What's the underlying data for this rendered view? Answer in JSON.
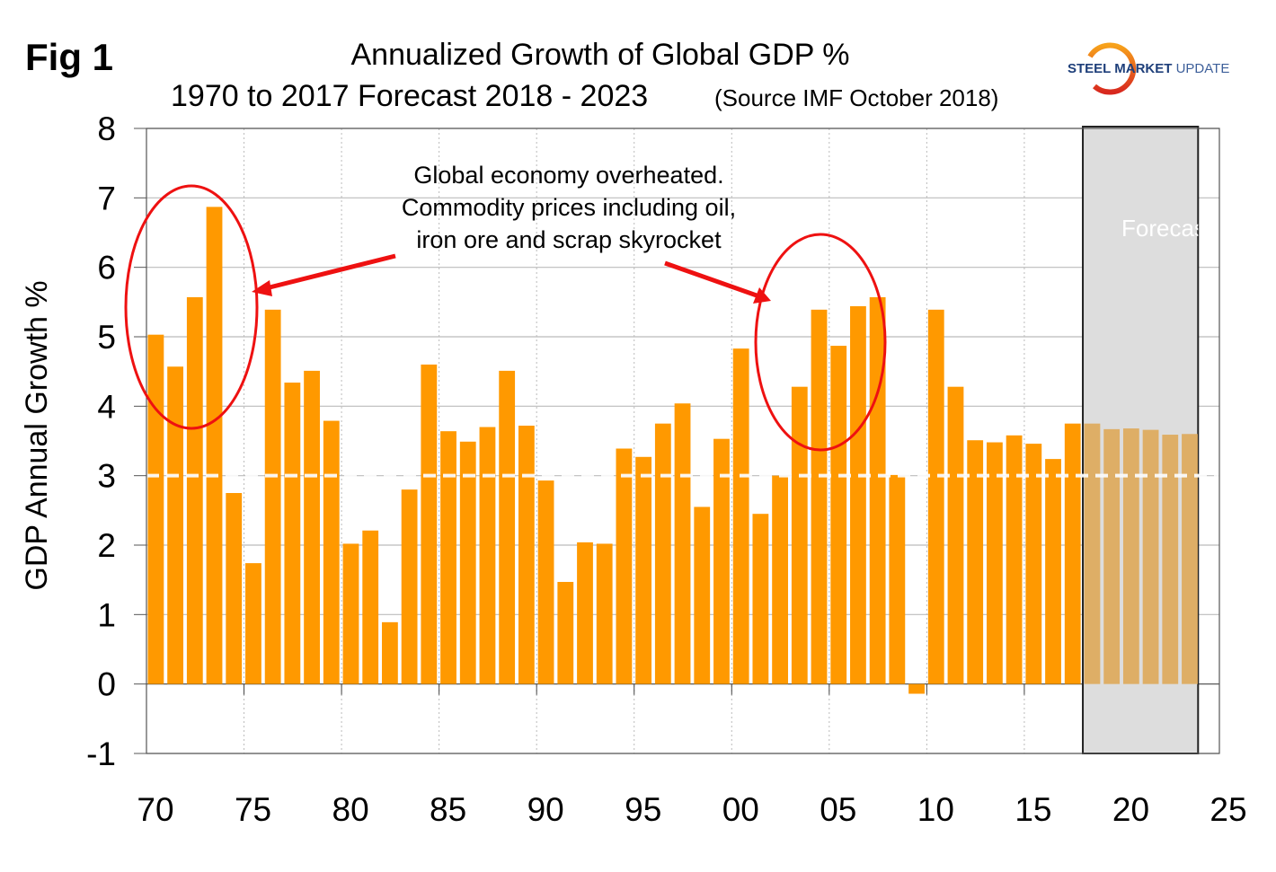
{
  "figure_label": "Fig 1",
  "logo": {
    "text_bold": "STEEL",
    "text_mid": "MARKET",
    "text_light": "UPDATE"
  },
  "chart_data": {
    "type": "bar",
    "title": "Annualized Growth of Global GDP %",
    "subtitle": "1970 to 2017 Forecast 2018 - 2023",
    "source": "(Source IMF October 2018)",
    "ylabel": "GDP Annual Growth %",
    "xlabel": "",
    "ylim": [
      -1,
      8
    ],
    "xlim": [
      1970,
      2025
    ],
    "yticks": [
      -1,
      0,
      1,
      2,
      3,
      4,
      5,
      6,
      7,
      8
    ],
    "xticks": [
      1970,
      1975,
      1980,
      1985,
      1990,
      1995,
      2000,
      2005,
      2010,
      2015,
      2020,
      2025
    ],
    "xtick_labels": [
      "70",
      "75",
      "80",
      "85",
      "90",
      "95",
      "00",
      "05",
      "10",
      "15",
      "20",
      "25"
    ],
    "grid": true,
    "reference_line": 3,
    "forecast_region": {
      "start": 2018,
      "end": 2023,
      "label": "Forecast"
    },
    "colors": {
      "actual": "#ff9900",
      "forecast": "#deae66",
      "forecast_bg": "#dddddd",
      "annotation": "#ee1111"
    },
    "years": [
      1970,
      1971,
      1972,
      1973,
      1974,
      1975,
      1976,
      1977,
      1978,
      1979,
      1980,
      1981,
      1982,
      1983,
      1984,
      1985,
      1986,
      1987,
      1988,
      1989,
      1990,
      1991,
      1992,
      1993,
      1994,
      1995,
      1996,
      1997,
      1998,
      1999,
      2000,
      2001,
      2002,
      2003,
      2004,
      2005,
      2006,
      2007,
      2008,
      2009,
      2010,
      2011,
      2012,
      2013,
      2014,
      2015,
      2016,
      2017,
      2018,
      2019,
      2020,
      2021,
      2022,
      2023
    ],
    "values": [
      5.03,
      4.57,
      5.57,
      6.87,
      2.75,
      1.74,
      5.39,
      4.34,
      4.51,
      3.79,
      2.02,
      2.21,
      0.89,
      2.8,
      4.6,
      3.64,
      3.49,
      3.7,
      4.51,
      3.72,
      2.93,
      1.47,
      2.04,
      2.02,
      3.39,
      3.27,
      3.75,
      4.04,
      2.55,
      3.53,
      4.83,
      2.45,
      3.0,
      4.28,
      5.39,
      4.87,
      5.44,
      5.57,
      3.01,
      -0.14,
      5.39,
      4.28,
      3.51,
      3.48,
      3.58,
      3.46,
      3.24,
      3.75,
      3.75,
      3.67,
      3.68,
      3.66,
      3.59,
      3.6
    ],
    "annotation": {
      "lines": [
        "Global economy overheated.",
        "Commodity prices including oil,",
        "iron ore and scrap skyrocket"
      ],
      "highlight_ranges": [
        [
          1970,
          1974
        ],
        [
          2003,
          2008
        ]
      ]
    }
  }
}
